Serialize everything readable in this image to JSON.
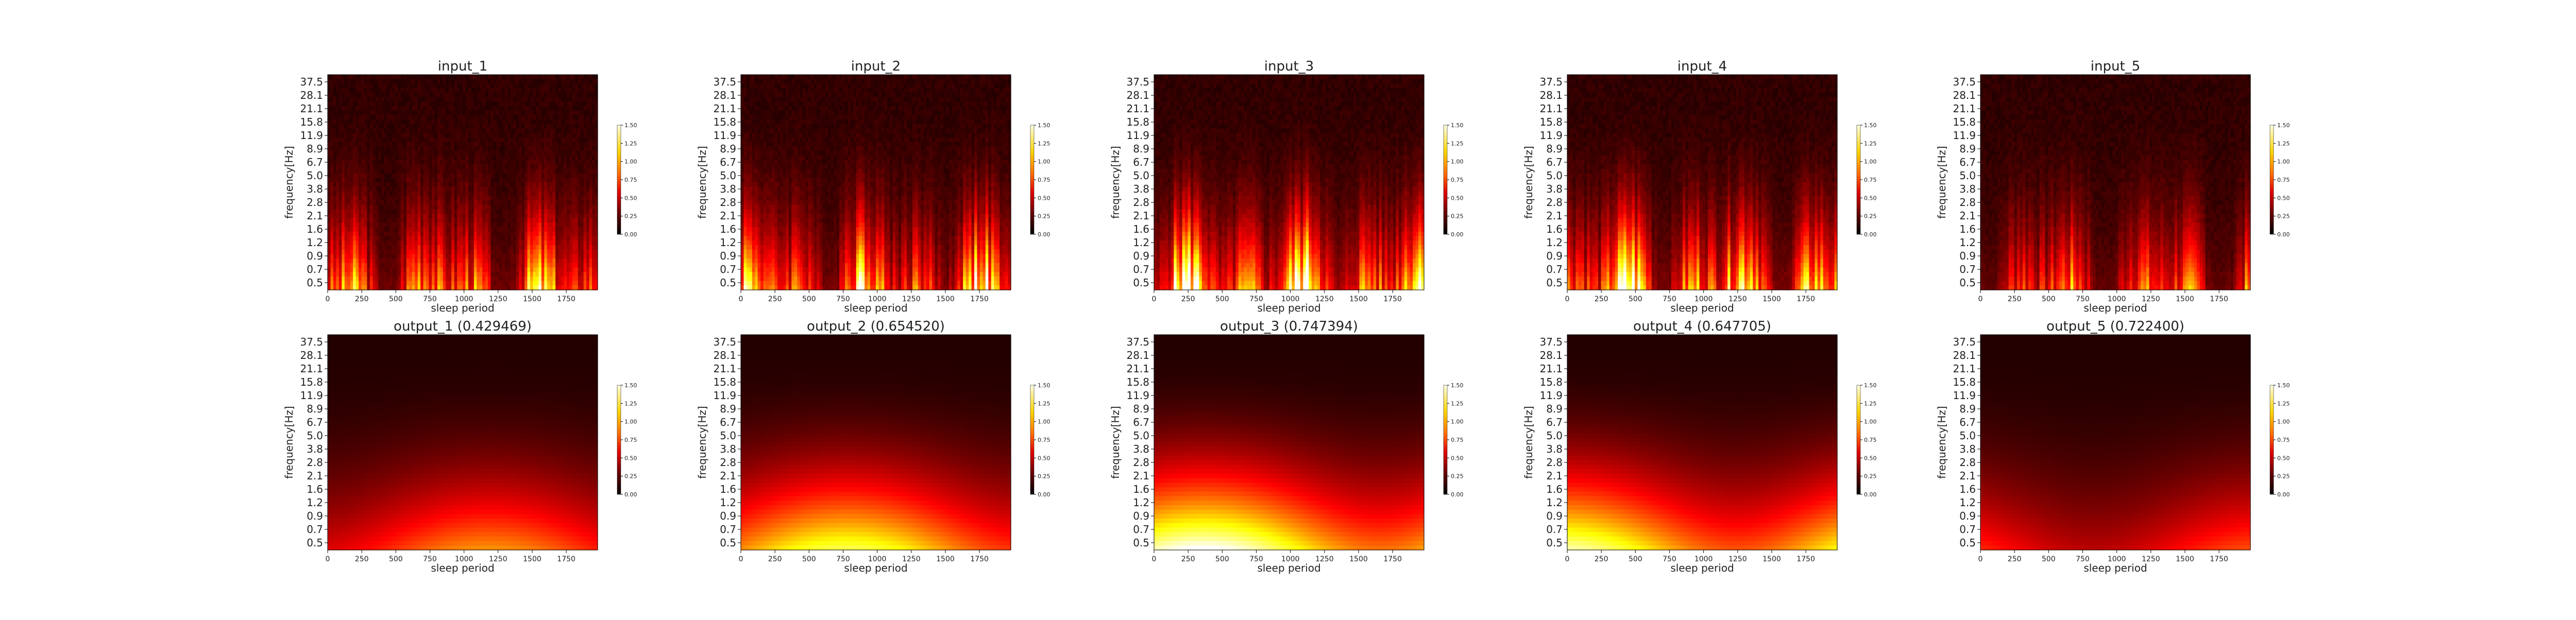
{
  "chart_data": [
    {
      "type": "heatmap",
      "title": "input_1",
      "xlabel": "sleep period",
      "ylabel": "frequency[Hz]",
      "x_ticks": [
        "0",
        "250",
        "500",
        "750",
        "1000",
        "1250",
        "1500",
        "1750"
      ],
      "xlim": [
        0,
        1980
      ],
      "y_ticks": [
        "37.5",
        "28.1",
        "21.1",
        "15.8",
        "11.9",
        "8.9",
        "6.7",
        "5.0",
        "3.8",
        "2.8",
        "2.1",
        "1.6",
        "1.2",
        "0.9",
        "0.7",
        "0.5"
      ],
      "colorbar": {
        "ticks": [
          "1.50",
          "1.25",
          "1.00",
          "0.75",
          "0.50",
          "0.25",
          "0.00"
        ],
        "range": [
          0,
          1.5
        ]
      },
      "colormap": "hot",
      "intensity": 0.75
    },
    {
      "type": "heatmap",
      "title": "input_2",
      "xlabel": "sleep period",
      "ylabel": "frequency[Hz]",
      "x_ticks": [
        "0",
        "250",
        "500",
        "750",
        "1000",
        "1250",
        "1500",
        "1750"
      ],
      "xlim": [
        0,
        1980
      ],
      "y_ticks": [
        "37.5",
        "28.1",
        "21.1",
        "15.8",
        "11.9",
        "8.9",
        "6.7",
        "5.0",
        "3.8",
        "2.8",
        "2.1",
        "1.6",
        "1.2",
        "0.9",
        "0.7",
        "0.5"
      ],
      "colorbar": {
        "ticks": [
          "1.50",
          "1.25",
          "1.00",
          "0.75",
          "0.50",
          "0.25",
          "0.00"
        ],
        "range": [
          0,
          1.5
        ]
      },
      "colormap": "hot",
      "intensity": 0.85
    },
    {
      "type": "heatmap",
      "title": "input_3",
      "xlabel": "sleep period",
      "ylabel": "frequency[Hz]",
      "x_ticks": [
        "0",
        "250",
        "500",
        "750",
        "1000",
        "1250",
        "1500",
        "1750"
      ],
      "xlim": [
        0,
        1980
      ],
      "y_ticks": [
        "37.5",
        "28.1",
        "21.1",
        "15.8",
        "11.9",
        "8.9",
        "6.7",
        "5.0",
        "3.8",
        "2.8",
        "2.1",
        "1.6",
        "1.2",
        "0.9",
        "0.7",
        "0.5"
      ],
      "colorbar": {
        "ticks": [
          "1.50",
          "1.25",
          "1.00",
          "0.75",
          "0.50",
          "0.25",
          "0.00"
        ],
        "range": [
          0,
          1.5
        ]
      },
      "colormap": "hot",
      "intensity": 1.0
    },
    {
      "type": "heatmap",
      "title": "input_4",
      "xlabel": "sleep period",
      "ylabel": "frequency[Hz]",
      "x_ticks": [
        "0",
        "250",
        "500",
        "750",
        "1000",
        "1250",
        "1500",
        "1750"
      ],
      "xlim": [
        0,
        1980
      ],
      "y_ticks": [
        "37.5",
        "28.1",
        "21.1",
        "15.8",
        "11.9",
        "8.9",
        "6.7",
        "5.0",
        "3.8",
        "2.8",
        "2.1",
        "1.6",
        "1.2",
        "0.9",
        "0.7",
        "0.5"
      ],
      "colorbar": {
        "ticks": [
          "1.50",
          "1.25",
          "1.00",
          "0.75",
          "0.50",
          "0.25",
          "0.00"
        ],
        "range": [
          0,
          1.5
        ]
      },
      "colormap": "hot",
      "intensity": 0.95
    },
    {
      "type": "heatmap",
      "title": "input_5",
      "xlabel": "sleep period",
      "ylabel": "frequency[Hz]",
      "x_ticks": [
        "0",
        "250",
        "500",
        "750",
        "1000",
        "1250",
        "1500",
        "1750"
      ],
      "xlim": [
        0,
        1980
      ],
      "y_ticks": [
        "37.5",
        "28.1",
        "21.1",
        "15.8",
        "11.9",
        "8.9",
        "6.7",
        "5.0",
        "3.8",
        "2.8",
        "2.1",
        "1.6",
        "1.2",
        "0.9",
        "0.7",
        "0.5"
      ],
      "colorbar": {
        "ticks": [
          "1.50",
          "1.25",
          "1.00",
          "0.75",
          "0.50",
          "0.25",
          "0.00"
        ],
        "range": [
          0,
          1.5
        ]
      },
      "colormap": "hot",
      "intensity": 0.6
    },
    {
      "type": "heatmap",
      "title": "output_1 (0.429469)",
      "xlabel": "sleep period",
      "ylabel": "frequency[Hz]",
      "x_ticks": [
        "0",
        "250",
        "500",
        "750",
        "1000",
        "1250",
        "1500",
        "1750"
      ],
      "xlim": [
        0,
        1980
      ],
      "y_ticks": [
        "37.5",
        "28.1",
        "21.1",
        "15.8",
        "11.9",
        "8.9",
        "6.7",
        "5.0",
        "3.8",
        "2.8",
        "2.1",
        "1.6",
        "1.2",
        "0.9",
        "0.7",
        "0.5"
      ],
      "colorbar": {
        "ticks": [
          "1.50",
          "1.25",
          "1.00",
          "0.75",
          "0.50",
          "0.25",
          "0.00"
        ],
        "range": [
          0,
          1.5
        ]
      },
      "colormap": "hot",
      "intensity": 0.55
    },
    {
      "type": "heatmap",
      "title": "output_2 (0.654520)",
      "xlabel": "sleep period",
      "ylabel": "frequency[Hz]",
      "x_ticks": [
        "0",
        "250",
        "500",
        "750",
        "1000",
        "1250",
        "1500",
        "1750"
      ],
      "xlim": [
        0,
        1980
      ],
      "y_ticks": [
        "37.5",
        "28.1",
        "21.1",
        "15.8",
        "11.9",
        "8.9",
        "6.7",
        "5.0",
        "3.8",
        "2.8",
        "2.1",
        "1.6",
        "1.2",
        "0.9",
        "0.7",
        "0.5"
      ],
      "colorbar": {
        "ticks": [
          "1.50",
          "1.25",
          "1.00",
          "0.75",
          "0.50",
          "0.25",
          "0.00"
        ],
        "range": [
          0,
          1.5
        ]
      },
      "colormap": "hot",
      "intensity": 0.8
    },
    {
      "type": "heatmap",
      "title": "output_3 (0.747394)",
      "xlabel": "sleep period",
      "ylabel": "frequency[Hz]",
      "x_ticks": [
        "0",
        "250",
        "500",
        "750",
        "1000",
        "1250",
        "1500",
        "1750"
      ],
      "xlim": [
        0,
        1980
      ],
      "y_ticks": [
        "37.5",
        "28.1",
        "21.1",
        "15.8",
        "11.9",
        "8.9",
        "6.7",
        "5.0",
        "3.8",
        "2.8",
        "2.1",
        "1.6",
        "1.2",
        "0.9",
        "0.7",
        "0.5"
      ],
      "colorbar": {
        "ticks": [
          "1.50",
          "1.25",
          "1.00",
          "0.75",
          "0.50",
          "0.25",
          "0.00"
        ],
        "range": [
          0,
          1.5
        ]
      },
      "colormap": "hot",
      "intensity": 1.0
    },
    {
      "type": "heatmap",
      "title": "output_4 (0.647705)",
      "xlabel": "sleep period",
      "ylabel": "frequency[Hz]",
      "x_ticks": [
        "0",
        "250",
        "500",
        "750",
        "1000",
        "1250",
        "1500",
        "1750"
      ],
      "xlim": [
        0,
        1980
      ],
      "y_ticks": [
        "37.5",
        "28.1",
        "21.1",
        "15.8",
        "11.9",
        "8.9",
        "6.7",
        "5.0",
        "3.8",
        "2.8",
        "2.1",
        "1.6",
        "1.2",
        "0.9",
        "0.7",
        "0.5"
      ],
      "colorbar": {
        "ticks": [
          "1.50",
          "1.25",
          "1.00",
          "0.75",
          "0.50",
          "0.25",
          "0.00"
        ],
        "range": [
          0,
          1.5
        ]
      },
      "colormap": "hot",
      "intensity": 0.9
    },
    {
      "type": "heatmap",
      "title": "output_5 (0.722400)",
      "xlabel": "sleep period",
      "ylabel": "frequency[Hz]",
      "x_ticks": [
        "0",
        "250",
        "500",
        "750",
        "1000",
        "1250",
        "1500",
        "1750"
      ],
      "xlim": [
        0,
        1980
      ],
      "y_ticks": [
        "37.5",
        "28.1",
        "21.1",
        "15.8",
        "11.9",
        "8.9",
        "6.7",
        "5.0",
        "3.8",
        "2.8",
        "2.1",
        "1.6",
        "1.2",
        "0.9",
        "0.7",
        "0.5"
      ],
      "colorbar": {
        "ticks": [
          "1.50",
          "1.25",
          "1.00",
          "0.75",
          "0.50",
          "0.25",
          "0.00"
        ],
        "range": [
          0,
          1.5
        ]
      },
      "colormap": "hot",
      "intensity": 0.45
    }
  ]
}
